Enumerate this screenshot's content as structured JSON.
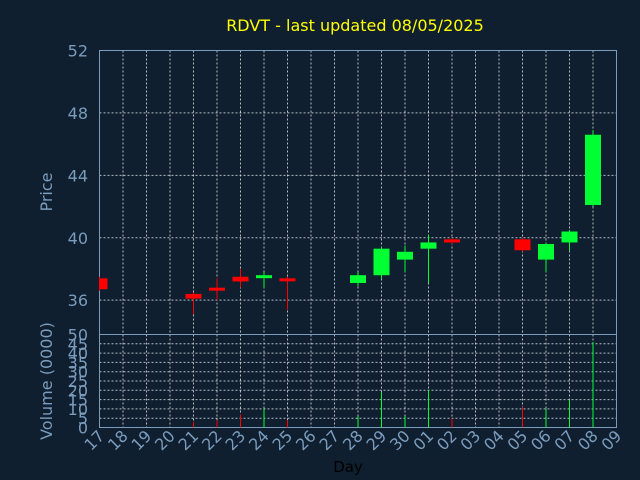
{
  "chart_data": {
    "type": "candlestick",
    "title": "RDVT - last updated 08/05/2025",
    "xlabel": "Day",
    "price_panel": {
      "ylabel": "Price",
      "ylim": [
        33.8,
        52
      ],
      "yticks": [
        "52",
        "48",
        "44",
        "40",
        "36"
      ],
      "grid": true
    },
    "volume_panel": {
      "ylabel": "Volume (0000)",
      "ylim": [
        0,
        50
      ],
      "yticks": [
        "50",
        "45",
        "40",
        "35",
        "30",
        "25",
        "20",
        "15",
        "10",
        "5",
        "0"
      ],
      "grid": true
    },
    "x_ticks": [
      "17",
      "18",
      "19",
      "20",
      "21",
      "22",
      "23",
      "24",
      "25",
      "26",
      "27",
      "28",
      "29",
      "30",
      "01",
      "02",
      "03",
      "04",
      "05",
      "06",
      "07",
      "08",
      "09"
    ],
    "colors": {
      "up": "#00ff33",
      "down": "#ff0000",
      "background": "#0f1f2f",
      "axis": "#7a9cbd",
      "title": "#ffff00"
    },
    "candles": [
      {
        "day": "17",
        "open": 37.4,
        "close": 36.7,
        "high": 37.5,
        "low": 36.6,
        "volume": 0
      },
      {
        "day": "21",
        "open": 36.4,
        "close": 36.1,
        "high": 36.5,
        "low": 35.1,
        "volume": 3
      },
      {
        "day": "22",
        "open": 36.8,
        "close": 36.7,
        "high": 37.4,
        "low": 36.0,
        "volume": 4
      },
      {
        "day": "23",
        "open": 37.5,
        "close": 37.2,
        "high": 38.0,
        "low": 36.8,
        "volume": 7
      },
      {
        "day": "24",
        "open": 37.5,
        "close": 37.6,
        "high": 37.8,
        "low": 36.8,
        "volume": 10
      },
      {
        "day": "25",
        "open": 37.4,
        "close": 37.3,
        "high": 37.5,
        "low": 35.4,
        "volume": 4
      },
      {
        "day": "28",
        "open": 37.1,
        "close": 37.6,
        "high": 37.8,
        "low": 36.9,
        "volume": 6
      },
      {
        "day": "29",
        "open": 37.6,
        "close": 39.3,
        "high": 39.4,
        "low": 37.4,
        "volume": 19
      },
      {
        "day": "30",
        "open": 38.6,
        "close": 39.1,
        "high": 39.5,
        "low": 37.8,
        "volume": 6
      },
      {
        "day": "01",
        "open": 39.3,
        "close": 39.7,
        "high": 40.2,
        "low": 37.1,
        "volume": 20
      },
      {
        "day": "02",
        "open": 39.9,
        "close": 39.7,
        "high": 40.0,
        "low": 39.6,
        "volume": 5
      },
      {
        "day": "05",
        "open": 39.9,
        "close": 39.2,
        "high": 40.0,
        "low": 39.1,
        "volume": 11
      },
      {
        "day": "06",
        "open": 38.6,
        "close": 39.6,
        "high": 39.7,
        "low": 37.8,
        "volume": 10
      },
      {
        "day": "07",
        "open": 39.7,
        "close": 40.4,
        "high": 40.5,
        "low": 39.2,
        "volume": 15
      },
      {
        "day": "08",
        "open": 42.1,
        "close": 46.6,
        "high": 46.9,
        "low": 42.0,
        "volume": 46
      }
    ]
  }
}
